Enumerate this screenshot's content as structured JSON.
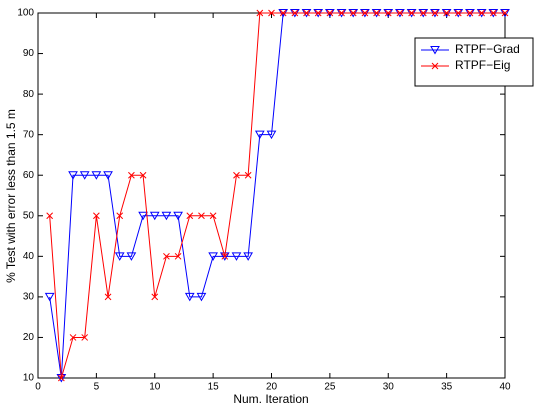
{
  "chart_data": {
    "type": "line",
    "xlabel": "Num. Iteration",
    "ylabel": "% Test with error less than 1.5 m",
    "x": [
      1,
      2,
      3,
      4,
      5,
      6,
      7,
      8,
      9,
      10,
      11,
      12,
      13,
      14,
      15,
      16,
      17,
      18,
      19,
      20,
      21,
      22,
      23,
      24,
      25,
      26,
      27,
      28,
      29,
      30,
      31,
      32,
      33,
      34,
      35,
      36,
      37,
      38,
      39,
      40
    ],
    "series": [
      {
        "name": "RTPF−Grad",
        "color": "#0000ff",
        "marker": "triangle-down",
        "values": [
          30,
          10,
          60,
          60,
          60,
          60,
          40,
          40,
          50,
          50,
          50,
          50,
          30,
          30,
          40,
          40,
          40,
          40,
          70,
          70,
          100,
          100,
          100,
          100,
          100,
          100,
          100,
          100,
          100,
          100,
          100,
          100,
          100,
          100,
          100,
          100,
          100,
          100,
          100,
          100
        ]
      },
      {
        "name": "RTPF−Eig",
        "color": "#ff0000",
        "marker": "x",
        "values": [
          50,
          10,
          20,
          20,
          50,
          30,
          50,
          60,
          60,
          30,
          40,
          40,
          50,
          50,
          50,
          40,
          60,
          60,
          100,
          100,
          100,
          100,
          100,
          100,
          100,
          100,
          100,
          100,
          100,
          100,
          100,
          100,
          100,
          100,
          100,
          100,
          100,
          100,
          100,
          100
        ]
      }
    ],
    "xlim": [
      0,
      40
    ],
    "xticks": [
      0,
      5,
      10,
      15,
      20,
      25,
      30,
      35,
      40
    ],
    "ylim": [
      10,
      100
    ],
    "yticks": [
      10,
      20,
      30,
      40,
      50,
      60,
      70,
      80,
      90,
      100
    ],
    "legend": "upper right"
  }
}
